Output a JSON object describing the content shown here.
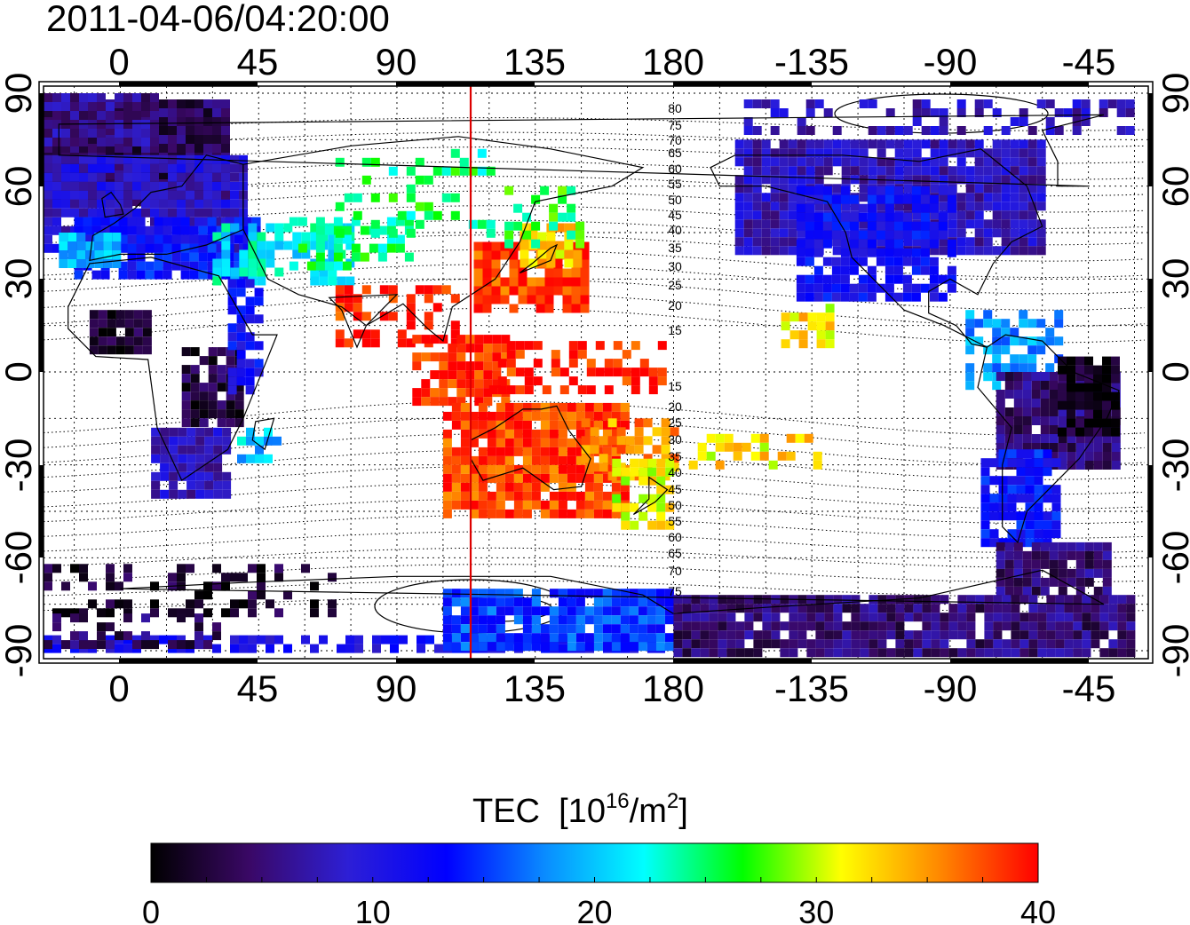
{
  "timestamp": "2011-04-06/04:20:00",
  "colorbar": {
    "title": "TEC",
    "unit_prefix": "[10",
    "unit_exp1": "16",
    "unit_mid": "/m",
    "unit_exp2": "2",
    "unit_suffix": "]",
    "min": 0,
    "max": 40,
    "tick_labels": [
      "0",
      "10",
      "20",
      "30",
      "40"
    ],
    "colormap": [
      "#000000",
      "#3a0866",
      "#2d1fd6",
      "#0000ff",
      "#0a8cff",
      "#00ffff",
      "#00ff00",
      "#ffff00",
      "#ff8800",
      "#ff0000"
    ]
  },
  "map": {
    "x_tick_labels": [
      "0",
      "45",
      "90",
      "135",
      "180",
      "-135",
      "-90",
      "-45"
    ],
    "y_tick_labels": [
      "90",
      "60",
      "30",
      "0",
      "-30",
      "-60",
      "-90"
    ],
    "central_meridian_color": "#dd0000",
    "contour_labels_north": [
      "80",
      "75",
      "70",
      "65",
      "60",
      "55",
      "50",
      "45",
      "40",
      "35",
      "30",
      "25",
      "20",
      "15"
    ],
    "contour_labels_south": [
      "15",
      "20",
      "25",
      "30",
      "35",
      "40",
      "45",
      "50",
      "55",
      "60",
      "65",
      "70",
      "75"
    ],
    "legend_colors": {
      "very_low": "#20003a",
      "low": "#3c10b8",
      "mid_low": "#1e6cff",
      "mid": "#00e0a0",
      "mid_high": "#8cff00",
      "high": "#ffa000",
      "very_high": "#ff1a00"
    }
  }
}
